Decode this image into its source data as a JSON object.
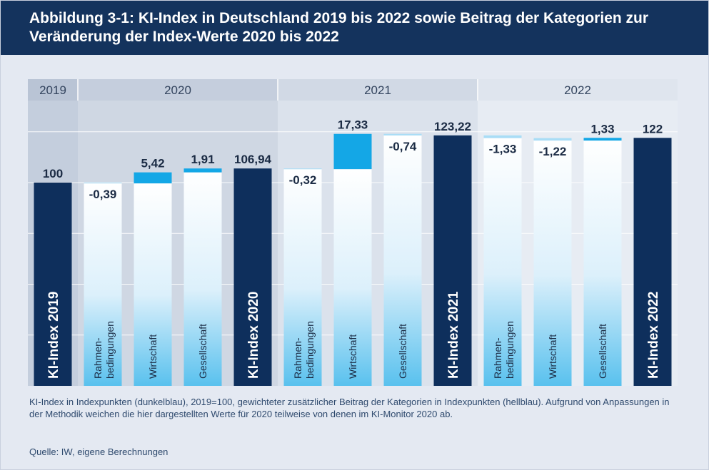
{
  "title": "Abbildung 3-1: KI-Index in Deutschland 2019 bis 2022 sowie Beitrag der Kategorien zur Veränderung der Index-Werte 2020 bis 2022",
  "footnote": "KI-Index in Indexpunkten (dunkelblau), 2019=100, gewichteter zusätzlicher Beitrag der Kategorien in Indexpunkten (hellblau). Aufgrund von Anpassungen in der Methodik weichen die hier dargestellten Werte für 2020 teilweise von denen im KI-Monitor 2020 ab.",
  "source": "Quelle: IW, eigene Berechnungen",
  "colors": {
    "title_bg": "#14335d",
    "index": "#0e2f5c",
    "positive": "#14a7e6",
    "negative": "#a9ddf6",
    "label": "#1b2b44"
  },
  "chart_data": {
    "type": "bar",
    "subtype": "waterfall",
    "ylim": [
      0,
      126
    ],
    "gridlines": [
      25,
      50,
      75,
      100,
      125
    ],
    "year_groups": [
      {
        "label": "2019",
        "span": [
          0,
          0
        ]
      },
      {
        "label": "2020",
        "span": [
          1,
          4
        ]
      },
      {
        "label": "2021",
        "span": [
          5,
          8
        ]
      },
      {
        "label": "2022",
        "span": [
          9,
          12
        ]
      }
    ],
    "bars": [
      {
        "label": "KI-Index 2019",
        "kind": "index",
        "value": 100,
        "value_label": "100"
      },
      {
        "label": "Rahmen-\nbedingungen",
        "kind": "delta",
        "value": -0.39,
        "value_label": "-0,39"
      },
      {
        "label": "Wirtschaft",
        "kind": "delta",
        "value": 5.42,
        "value_label": "5,42"
      },
      {
        "label": "Gesellschaft",
        "kind": "delta",
        "value": 1.91,
        "value_label": "1,91"
      },
      {
        "label": "KI-Index 2020",
        "kind": "index",
        "value": 106.94,
        "value_label": "106,94"
      },
      {
        "label": "Rahmen-\nbedingungen",
        "kind": "delta",
        "value": -0.32,
        "value_label": "-0,32"
      },
      {
        "label": "Wirtschaft",
        "kind": "delta",
        "value": 17.33,
        "value_label": "17,33"
      },
      {
        "label": "Gesellschaft",
        "kind": "delta",
        "value": -0.74,
        "value_label": "-0,74"
      },
      {
        "label": "KI-Index 2021",
        "kind": "index",
        "value": 123.22,
        "value_label": "123,22"
      },
      {
        "label": "Rahmen-\nbedingungen",
        "kind": "delta",
        "value": -1.33,
        "value_label": "-1,33"
      },
      {
        "label": "Wirtschaft",
        "kind": "delta",
        "value": -1.22,
        "value_label": "-1,22"
      },
      {
        "label": "Gesellschaft",
        "kind": "delta",
        "value": 1.33,
        "value_label": "1,33"
      },
      {
        "label": "KI-Index 2022",
        "kind": "index",
        "value": 122,
        "value_label": "122"
      }
    ]
  }
}
